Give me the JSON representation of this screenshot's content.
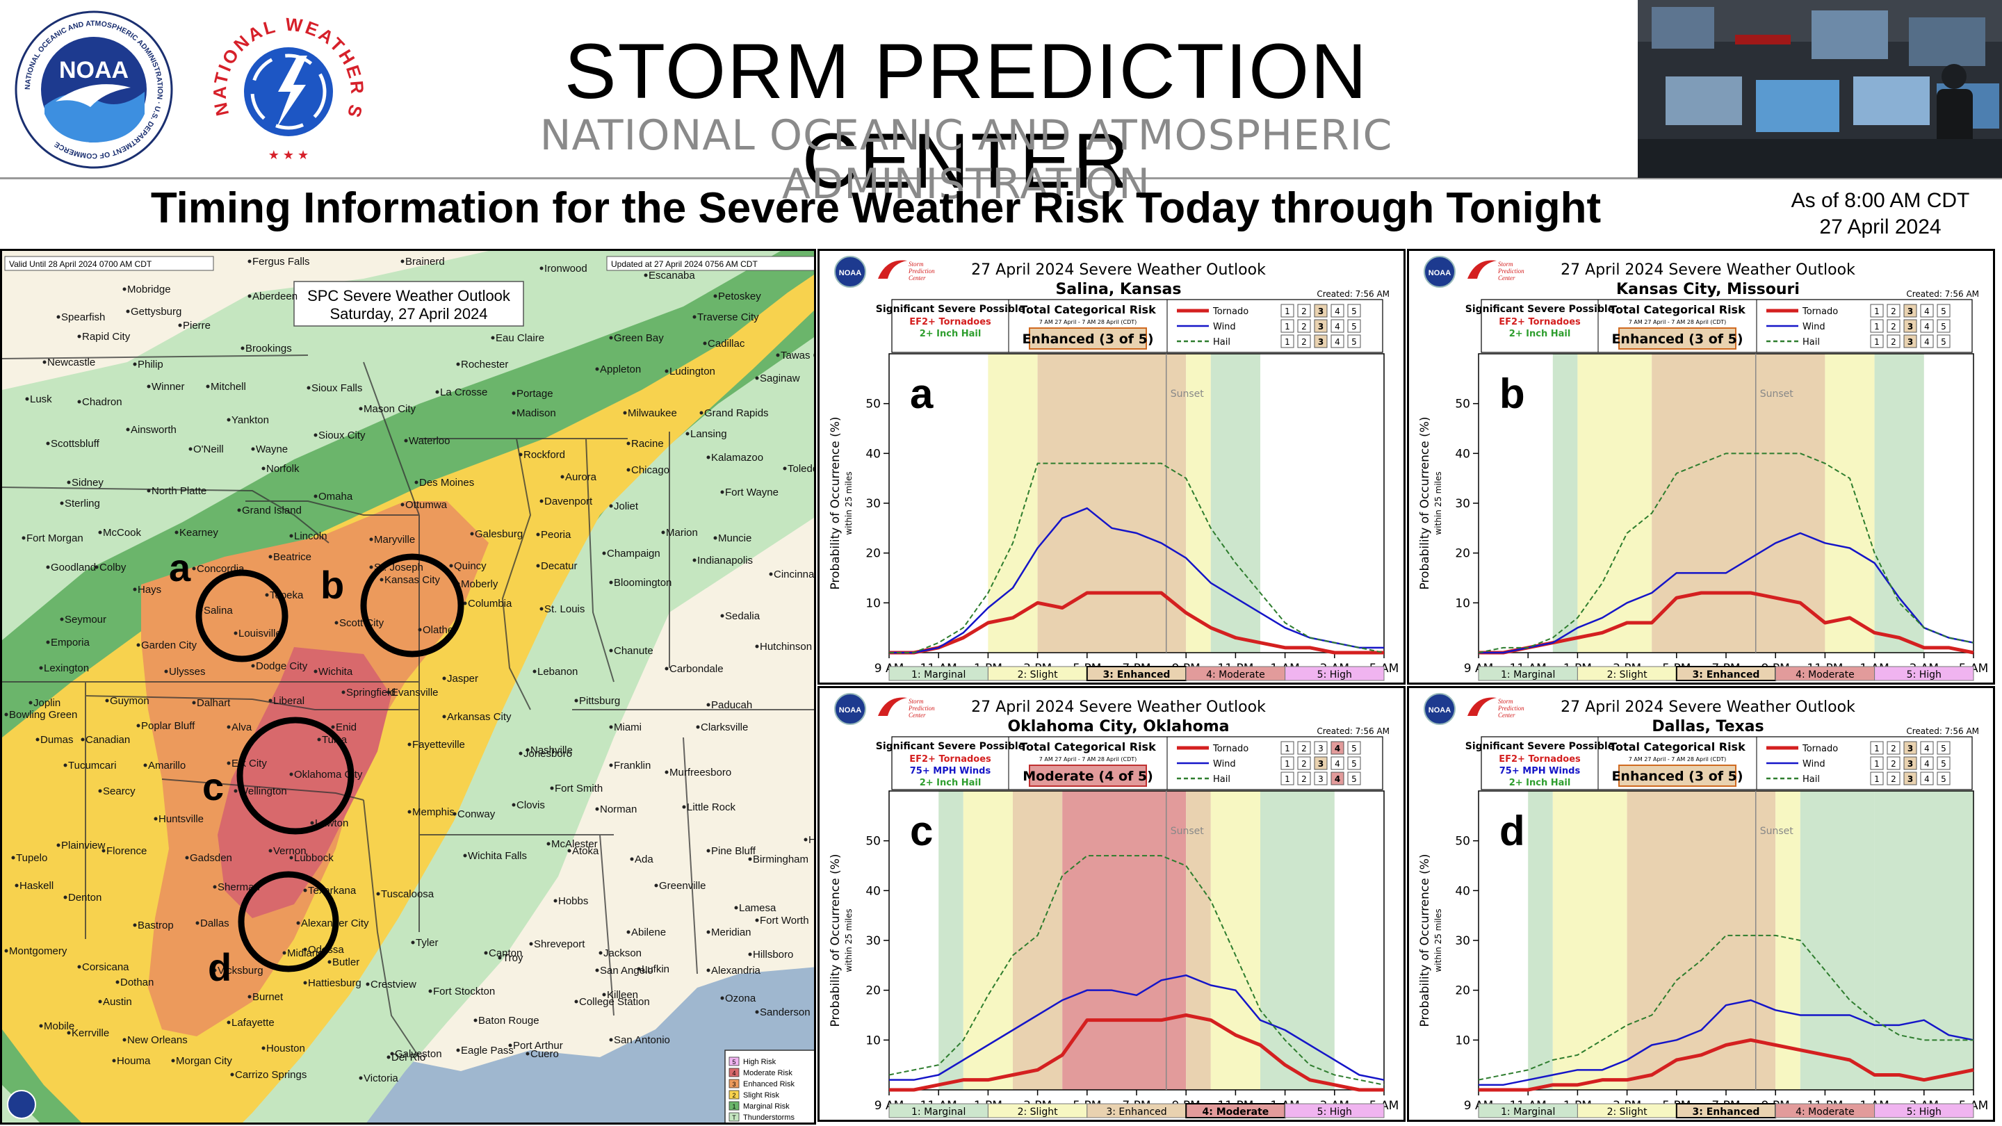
{
  "header": {
    "title": "STORM PREDICTION CENTER",
    "subtitle": "NATIONAL OCEANIC AND ATMOSPHERIC ADMINISTRATION",
    "noaa_logo_text": "NOAA",
    "noaa_ring_text": "NATIONAL OCEANIC AND ATMOSPHERIC ADMINISTRATION · U.S. DEPARTMENT OF COMMERCE",
    "nws_ring_text": "NATIONAL WEATHER SERVICE"
  },
  "timing_title": "Timing Information for the Severe Weather Risk Today through Tonight",
  "as_of": {
    "line1": "As of 8:00 AM CDT",
    "line2": "27 April 2024"
  },
  "map": {
    "valid_text": "Valid Until 28 April 2024 0700 AM CDT",
    "updated_text": "Updated at 27 April 2024 0756 AM CDT",
    "outlook_title": "SPC Severe Weather Outlook",
    "outlook_date": "Saturday, 27 April 2024",
    "markers": [
      "a",
      "b",
      "c",
      "d"
    ],
    "legend": [
      "High Risk",
      "Moderate Risk",
      "Enhanced Risk",
      "Slight Risk",
      "Marginal Risk",
      "Thunderstorms"
    ],
    "legend_nums": [
      "5",
      "4",
      "3",
      "2",
      "1",
      "T"
    ],
    "cities": [
      "Fergus Falls",
      "Brainerd",
      "Ironwood",
      "Escanaba",
      "Mobridge",
      "Aberdeen",
      "Petoskey",
      "Gettysburg",
      "Traverse City",
      "Spearfish",
      "Pierre",
      "Eau Claire",
      "Green Bay",
      "Cadillac",
      "Rapid City",
      "Brookings",
      "Tawas City",
      "Newcastle",
      "Philip",
      "Rochester",
      "Appleton",
      "Ludington",
      "Saginaw",
      "Winner",
      "Mitchell",
      "Sioux Falls",
      "La Crosse",
      "Portage",
      "Lusk",
      "Chadron",
      "Mason City",
      "Madison",
      "Milwaukee",
      "Grand Rapids",
      "Yankton",
      "Ainsworth",
      "Sioux City",
      "Waterloo",
      "Lansing",
      "Scottsbluff",
      "O'Neill",
      "Wayne",
      "Racine",
      "Rockford",
      "Kalamazoo",
      "Norfolk",
      "Chicago",
      "Toledo",
      "Sidney",
      "Des Moines",
      "Aurora",
      "North Platte",
      "Omaha",
      "Fort Wayne",
      "Sterling",
      "Ottumwa",
      "Davenport",
      "Grand Island",
      "Joliet",
      "McCook",
      "Kearney",
      "Galesburg",
      "Peoria",
      "Marion",
      "Muncie",
      "Fort Morgan",
      "Lincoln",
      "Maryville",
      "Champaign",
      "Indianapolis",
      "Beatrice",
      "St. Joseph",
      "Quincy",
      "Goodland",
      "Colby",
      "Concordia",
      "Decatur",
      "Cincinnati",
      "Moberly",
      "Kansas City",
      "Bloomington",
      "Hays",
      "Topeka",
      "Columbia",
      "Salina",
      "St. Louis",
      "Seymour",
      "Scott City",
      "Olathe",
      "Sedalia",
      "Louisville",
      "Emporia",
      "Garden City",
      "Hutchinson",
      "Lexington",
      "Ulysses",
      "Dodge City",
      "Wichita",
      "Chanute",
      "Jasper",
      "Lebanon",
      "Carbondale",
      "Evansville",
      "Springfield",
      "Joplin",
      "Guymon",
      "Liberal",
      "Pittsburg",
      "Paducah",
      "Bowling Green",
      "Dalhart",
      "Arkansas City",
      "Poplar Bluff",
      "Alva",
      "Enid",
      "Miami",
      "Clarksville",
      "Dumas",
      "Canadian",
      "Tulsa",
      "Fayetteville",
      "Nashville",
      "Tucumcari",
      "Amarillo",
      "Elk City",
      "Jonesboro",
      "Franklin",
      "Murfreesboro",
      "Oklahoma City",
      "Fort Smith",
      "Searcy",
      "Wellington",
      "Clovis",
      "Norman",
      "Memphis",
      "Conway",
      "Little Rock",
      "Huntsville",
      "Lawton",
      "McAlester",
      "Plainview",
      "Florence",
      "Vernon",
      "Wichita Falls",
      "Atoka",
      "Hot Springs",
      "Pine Bluff",
      "Tupelo",
      "Gadsden",
      "Lubbock",
      "Ada",
      "Birmingham",
      "Haskell",
      "Denton",
      "Sherman",
      "Texarkana",
      "Greenville",
      "Tuscaloosa",
      "Hobbs",
      "Lamesa",
      "Dallas",
      "Alexander City",
      "Fort Worth",
      "Tyler",
      "Shreveport",
      "Bastrop",
      "Abilene",
      "Meridian",
      "Montgomery",
      "Odessa",
      "Canton",
      "Jackson",
      "Midland",
      "Hillsboro",
      "Corsicana",
      "Vicksburg",
      "Butler",
      "Troy",
      "San Angelo",
      "Lufkin",
      "Alexandria",
      "Hattiesburg",
      "Dothan",
      "Fort Stockton",
      "Killeen",
      "Burnet",
      "Crestview",
      "Ozona",
      "College Station",
      "Mobile",
      "Baton Rouge",
      "Sanderson",
      "Austin",
      "Kerrville",
      "Lafayette",
      "New Orleans",
      "Del Rio",
      "Port Arthur",
      "Houston",
      "San Antonio",
      "Morgan City",
      "Houma",
      "Galveston",
      "Eagle Pass",
      "Cuero",
      "Victoria",
      "Carrizo Springs"
    ]
  },
  "charts_common": {
    "outlook_heading": "27 April 2024 Severe Weather Outlook",
    "created": "Created: 7:56 AM",
    "sig_title": "Significant Severe Possible",
    "total_title": "Total Categorical Risk",
    "window_text": "7 AM 27 April - 7 AM 28 April (CDT)",
    "spc_logo_lines": [
      "Storm",
      "Prediction",
      "Center"
    ],
    "ylabel": "Probability of Occurrence (%)",
    "ylabel_sub": "within 25 miles",
    "sunset_label": "Sunset",
    "legend_names": [
      "Tornado",
      "Wind",
      "Hail"
    ],
    "scale_nums": [
      "1",
      "2",
      "3",
      "4",
      "5"
    ],
    "x_ticks": [
      "9 AM",
      "11 AM",
      "1 PM",
      "3 PM",
      "5 PM",
      "7 PM",
      "9 PM",
      "11 PM",
      "1 AM",
      "3 AM",
      "5 AM"
    ],
    "x_hours": [
      9,
      11,
      13,
      15,
      17,
      19,
      21,
      23,
      25,
      27,
      29
    ],
    "y_ticks": [
      10,
      20,
      30,
      40,
      50
    ],
    "ylim": [
      0,
      60
    ],
    "xlim": [
      9,
      29
    ],
    "risk_labels": [
      "1: Marginal",
      "2: Slight",
      "3: Enhanced",
      "4: Moderate",
      "5: High"
    ],
    "colors": {
      "marginal": "#cde6cd",
      "slight": "#f7f7c2",
      "enhanced": "#e9d2b0",
      "moderate": "#e29b9b",
      "high": "#f0b4f0",
      "tornado": "#d42020",
      "wind": "#1515c8",
      "hail": "#2e7d2e"
    }
  },
  "charts": [
    {
      "id": "a",
      "letter": "a",
      "location": "Salina, Kansas",
      "sig_items": [
        {
          "text": "EF2+ Tornadoes",
          "color": "#d42020"
        },
        {
          "text": "2+ Inch Hail",
          "color": "#2e9e2e"
        }
      ],
      "category": "Enhanced (3 of 5)",
      "category_level": 3,
      "legend_levels": [
        3,
        3,
        3
      ],
      "sunset_hour": 20.2,
      "bands": [
        [
          13,
          15,
          "slight"
        ],
        [
          15,
          21,
          "enhanced"
        ],
        [
          21,
          22,
          "slight"
        ],
        [
          22,
          24,
          "marginal"
        ]
      ],
      "chart_data": {
        "type": "line",
        "x": [
          9,
          10,
          11,
          12,
          13,
          14,
          15,
          16,
          17,
          18,
          19,
          20,
          21,
          22,
          23,
          24,
          25,
          26,
          27,
          28,
          29
        ],
        "series": [
          {
            "name": "Tornado",
            "values": [
              0,
              0,
              1,
              3,
              6,
              7,
              10,
              9,
              12,
              12,
              12,
              12,
              8,
              5,
              3,
              2,
              1,
              1,
              0,
              0,
              0
            ]
          },
          {
            "name": "Wind",
            "values": [
              0,
              0,
              1,
              4,
              9,
              13,
              21,
              27,
              29,
              25,
              24,
              22,
              19,
              14,
              11,
              8,
              5,
              3,
              2,
              1,
              1
            ]
          },
          {
            "name": "Hail",
            "values": [
              0,
              0,
              2,
              5,
              12,
              22,
              38,
              38,
              38,
              38,
              38,
              38,
              35,
              25,
              18,
              12,
              6,
              3,
              2,
              1,
              0
            ]
          }
        ],
        "title": "27 April 2024 Severe Weather Outlook",
        "ylabel": "Probability of Occurrence (%)",
        "ylim": [
          0,
          60
        ]
      }
    },
    {
      "id": "b",
      "letter": "b",
      "location": "Kansas City, Missouri",
      "sig_items": [
        {
          "text": "EF2+ Tornadoes",
          "color": "#d42020"
        },
        {
          "text": "2+ Inch Hail",
          "color": "#2e9e2e"
        }
      ],
      "category": "Enhanced (3 of 5)",
      "category_level": 3,
      "legend_levels": [
        3,
        3,
        3
      ],
      "sunset_hour": 20.2,
      "bands": [
        [
          12,
          13,
          "marginal"
        ],
        [
          13,
          16,
          "slight"
        ],
        [
          16,
          23,
          "enhanced"
        ],
        [
          23,
          25,
          "slight"
        ],
        [
          25,
          27,
          "marginal"
        ]
      ],
      "chart_data": {
        "type": "line",
        "x": [
          9,
          10,
          11,
          12,
          13,
          14,
          15,
          16,
          17,
          18,
          19,
          20,
          21,
          22,
          23,
          24,
          25,
          26,
          27,
          28,
          29
        ],
        "series": [
          {
            "name": "Tornado",
            "values": [
              0,
              0,
              1,
              2,
              3,
              4,
              6,
              6,
              11,
              12,
              12,
              12,
              11,
              10,
              6,
              7,
              4,
              3,
              1,
              1,
              0
            ]
          },
          {
            "name": "Wind",
            "values": [
              0,
              0,
              1,
              2,
              5,
              7,
              10,
              12,
              16,
              16,
              16,
              19,
              22,
              24,
              22,
              21,
              18,
              11,
              5,
              3,
              2
            ]
          },
          {
            "name": "Hail",
            "values": [
              0,
              1,
              1,
              3,
              7,
              14,
              24,
              28,
              36,
              38,
              40,
              40,
              40,
              40,
              38,
              35,
              20,
              10,
              5,
              3,
              2
            ]
          }
        ],
        "title": "27 April 2024 Severe Weather Outlook",
        "ylabel": "Probability of Occurrence (%)",
        "ylim": [
          0,
          60
        ]
      }
    },
    {
      "id": "c",
      "letter": "c",
      "location": "Oklahoma City, Oklahoma",
      "sig_items": [
        {
          "text": "EF2+ Tornadoes",
          "color": "#d42020"
        },
        {
          "text": "75+ MPH Winds",
          "color": "#1515c8"
        },
        {
          "text": "2+ Inch Hail",
          "color": "#2e9e2e"
        }
      ],
      "category": "Moderate (4 of 5)",
      "category_level": 4,
      "legend_levels": [
        4,
        3,
        4
      ],
      "sunset_hour": 20.2,
      "bands": [
        [
          11,
          12,
          "marginal"
        ],
        [
          12,
          14,
          "slight"
        ],
        [
          14,
          16,
          "enhanced"
        ],
        [
          16,
          21,
          "moderate"
        ],
        [
          21,
          22,
          "enhanced"
        ],
        [
          22,
          24,
          "slight"
        ],
        [
          24,
          27,
          "marginal"
        ]
      ],
      "chart_data": {
        "type": "line",
        "x": [
          9,
          10,
          11,
          12,
          13,
          14,
          15,
          16,
          17,
          18,
          19,
          20,
          21,
          22,
          23,
          24,
          25,
          26,
          27,
          28,
          29
        ],
        "series": [
          {
            "name": "Tornado",
            "values": [
              0,
              0,
              1,
              2,
              2,
              3,
              4,
              7,
              14,
              14,
              14,
              14,
              15,
              14,
              11,
              9,
              5,
              2,
              1,
              0,
              0
            ]
          },
          {
            "name": "Wind",
            "values": [
              2,
              2,
              3,
              6,
              9,
              12,
              15,
              18,
              20,
              20,
              19,
              22,
              23,
              21,
              20,
              14,
              12,
              9,
              6,
              3,
              2
            ]
          },
          {
            "name": "Hail",
            "values": [
              3,
              4,
              5,
              10,
              19,
              27,
              31,
              43,
              47,
              47,
              47,
              47,
              45,
              38,
              27,
              16,
              10,
              5,
              3,
              2,
              1
            ]
          }
        ],
        "title": "27 April 2024 Severe Weather Outlook",
        "ylabel": "Probability of Occurrence (%)",
        "ylim": [
          0,
          60
        ]
      }
    },
    {
      "id": "d",
      "letter": "d",
      "location": "Dallas, Texas",
      "sig_items": [
        {
          "text": "EF2+ Tornadoes",
          "color": "#d42020"
        },
        {
          "text": "75+ MPH Winds",
          "color": "#1515c8"
        },
        {
          "text": "2+ Inch Hail",
          "color": "#2e9e2e"
        }
      ],
      "category": "Enhanced (3 of 5)",
      "category_level": 3,
      "legend_levels": [
        3,
        3,
        3
      ],
      "sunset_hour": 20.2,
      "bands": [
        [
          11,
          12,
          "marginal"
        ],
        [
          12,
          15,
          "slight"
        ],
        [
          15,
          19,
          "enhanced"
        ],
        [
          19,
          21,
          "enhanced"
        ],
        [
          21,
          22,
          "slight"
        ],
        [
          22,
          25,
          "marginal"
        ],
        [
          25,
          29,
          "marginal"
        ]
      ],
      "chart_data": {
        "type": "line",
        "x": [
          9,
          10,
          11,
          12,
          13,
          14,
          15,
          16,
          17,
          18,
          19,
          20,
          21,
          22,
          23,
          24,
          25,
          26,
          27,
          28,
          29
        ],
        "series": [
          {
            "name": "Tornado",
            "values": [
              0,
              0,
              0,
              1,
              1,
              2,
              2,
              3,
              6,
              7,
              9,
              10,
              9,
              8,
              7,
              6,
              3,
              3,
              2,
              3,
              4
            ]
          },
          {
            "name": "Wind",
            "values": [
              1,
              1,
              2,
              3,
              4,
              4,
              6,
              9,
              10,
              12,
              17,
              18,
              16,
              15,
              15,
              15,
              13,
              13,
              14,
              11,
              10
            ]
          },
          {
            "name": "Hail",
            "values": [
              2,
              3,
              4,
              6,
              7,
              10,
              13,
              15,
              22,
              26,
              31,
              31,
              31,
              30,
              24,
              18,
              14,
              11,
              10,
              10,
              10
            ]
          }
        ],
        "title": "27 April 2024 Severe Weather Outlook",
        "ylabel": "Probability of Occurrence (%)",
        "ylim": [
          0,
          60
        ]
      }
    }
  ]
}
